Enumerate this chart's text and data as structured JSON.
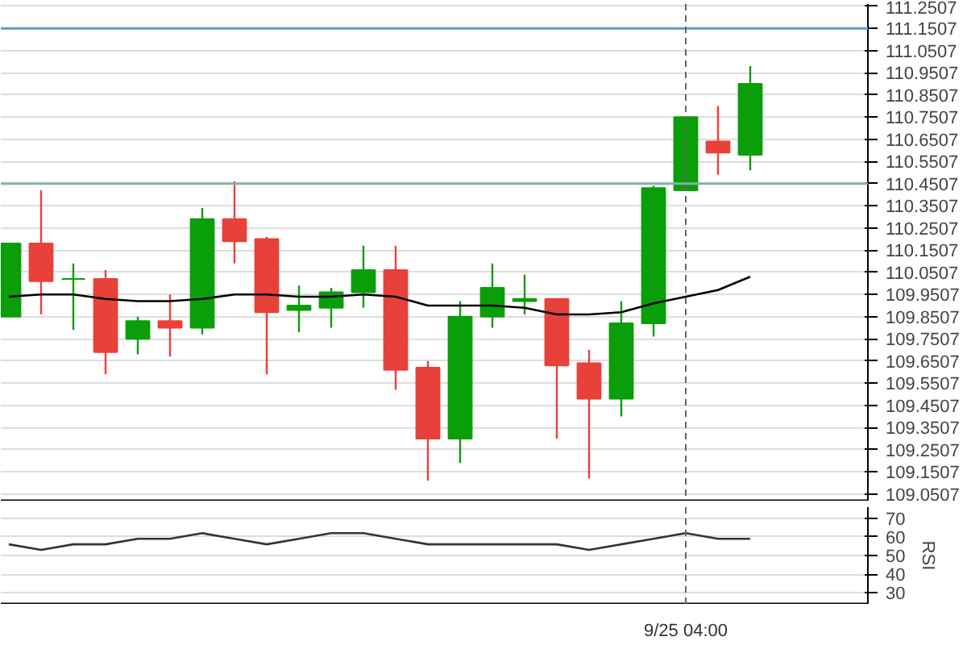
{
  "chart_data": [
    {
      "type": "candlestick",
      "tick_labels": "y",
      "grid": "y",
      "categories": [
        null,
        null,
        null,
        null,
        null,
        null,
        null,
        null,
        null,
        null,
        null,
        null,
        null,
        null,
        null,
        null,
        null,
        null,
        null,
        null,
        null,
        null,
        null,
        null
      ],
      "series": [
        {
          "type": "candlestick",
          "ohlc": [
            [
              109.85,
              110.18,
              109.85,
              110.18
            ],
            [
              110.18,
              110.42,
              109.86,
              110.01
            ],
            [
              110.02,
              110.09,
              109.79,
              110.02
            ],
            [
              110.02,
              110.06,
              109.59,
              109.69
            ],
            [
              109.75,
              109.85,
              109.68,
              109.83
            ],
            [
              109.83,
              109.95,
              109.67,
              109.8
            ],
            [
              109.8,
              110.34,
              109.77,
              110.29
            ],
            [
              110.29,
              110.46,
              110.09,
              110.19
            ],
            [
              110.2,
              110.21,
              109.59,
              109.87
            ],
            [
              109.88,
              109.99,
              109.78,
              109.9
            ],
            [
              109.89,
              109.98,
              109.8,
              109.96
            ],
            [
              109.96,
              110.17,
              109.89,
              110.06
            ],
            [
              110.06,
              110.17,
              109.52,
              109.61
            ],
            [
              109.62,
              109.65,
              109.11,
              109.3
            ],
            [
              109.3,
              109.92,
              109.19,
              109.85
            ],
            [
              109.85,
              110.09,
              109.8,
              109.98
            ],
            [
              109.92,
              110.04,
              109.86,
              109.93
            ],
            [
              109.93,
              109.93,
              109.3,
              109.63
            ],
            [
              109.64,
              109.7,
              109.12,
              109.48
            ],
            [
              109.48,
              109.92,
              109.4,
              109.82
            ],
            [
              109.82,
              110.44,
              109.76,
              110.43
            ],
            [
              110.42,
              110.75,
              110.42,
              110.75
            ],
            [
              110.64,
              110.8,
              110.49,
              110.59
            ],
            [
              110.58,
              110.98,
              110.51,
              110.9
            ]
          ],
          "colors": [
            "#0a9e0a",
            "#e8413a",
            "#0a9e0a",
            "#e8413a",
            "#0a9e0a",
            "#e8413a",
            "#0a9e0a",
            "#e8413a",
            "#e8413a",
            "#0a9e0a",
            "#0a9e0a",
            "#0a9e0a",
            "#e8413a",
            "#e8413a",
            "#0a9e0a",
            "#0a9e0a",
            "#0a9e0a",
            "#e8413a",
            "#e8413a",
            "#0a9e0a",
            "#0a9e0a",
            "#0a9e0a",
            "#e8413a",
            "#0a9e0a"
          ]
        },
        {
          "type": "line",
          "color": "#000000",
          "values": [
            109.94,
            109.95,
            109.95,
            109.93,
            109.92,
            109.92,
            109.93,
            109.95,
            109.95,
            109.94,
            109.94,
            109.95,
            109.94,
            109.9,
            109.9,
            109.9,
            109.89,
            109.86,
            109.86,
            109.87,
            109.91,
            109.94,
            109.97,
            110.03
          ]
        }
      ],
      "ylim": [
        109.02,
        111.26
      ],
      "yticks": [
        109.0507,
        109.1507,
        109.2507,
        109.3507,
        109.4507,
        109.5507,
        109.6507,
        109.7507,
        109.8507,
        109.9507,
        110.0507,
        110.1507,
        110.2507,
        110.3507,
        110.4507,
        110.5507,
        110.6507,
        110.7507,
        110.8507,
        110.9507,
        111.0507,
        111.1507,
        111.2507
      ],
      "ref_lines": [
        {
          "axis": "y",
          "value": 110.45,
          "color": "#7fb5a8"
        },
        {
          "axis": "y",
          "value": 111.15,
          "color": "#5b9bd5"
        }
      ]
    },
    {
      "type": "line",
      "grid": "y",
      "ylabel": "RSI",
      "categories": [
        null,
        null,
        null,
        null,
        null,
        null,
        null,
        null,
        null,
        null,
        null,
        null,
        null,
        null,
        null,
        null,
        null,
        null,
        null,
        null,
        null,
        "9/25 04:00",
        null,
        null
      ],
      "series": [
        {
          "color": "#333333",
          "values": [
            56,
            53,
            56,
            56,
            59,
            59,
            62,
            59,
            56,
            59,
            62,
            62,
            59,
            56,
            56,
            56,
            56,
            56,
            53,
            56,
            59,
            62,
            59,
            59
          ]
        }
      ],
      "ylim": [
        24,
        76
      ],
      "yticks": [
        30,
        40,
        50,
        60,
        70
      ],
      "ref_lines": [
        {
          "axis": "x",
          "value": "9/25 04:00",
          "color": "#666666",
          "line_style": "dashed"
        }
      ]
    }
  ]
}
